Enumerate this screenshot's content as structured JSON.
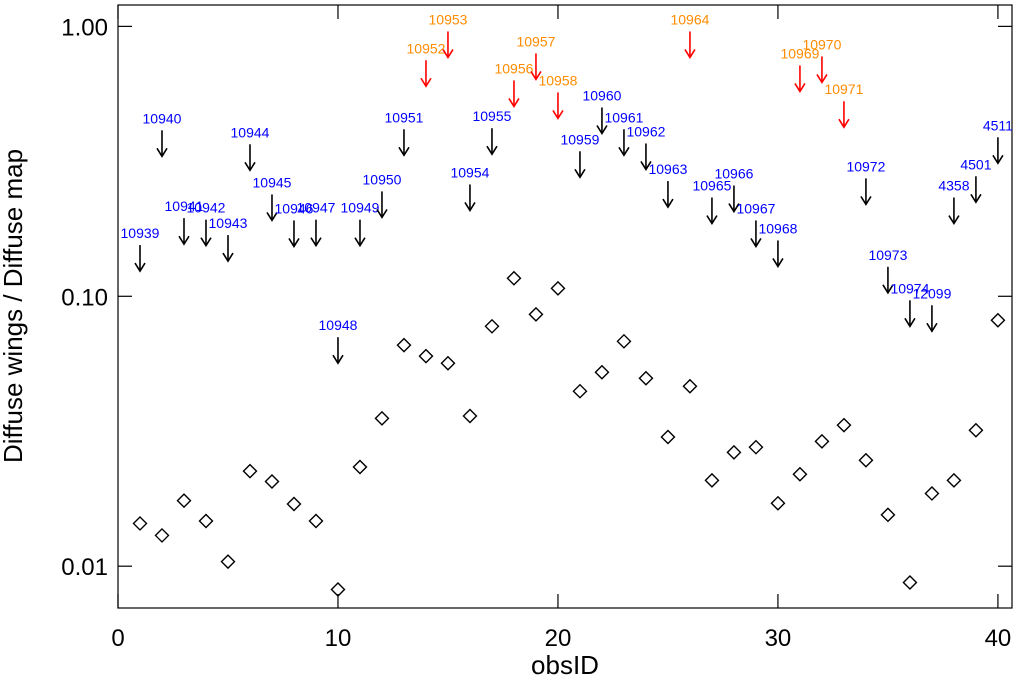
{
  "chart_data": {
    "type": "scatter",
    "xlabel": "obsID",
    "ylabel": "Diffuse wings / Diffuse map",
    "log_y": true,
    "xlim": [
      0,
      40.64
    ],
    "ylim": [
      0.007,
      1.2
    ],
    "xticks": [
      0,
      10,
      20,
      30,
      40
    ],
    "yticks": [
      {
        "value": 0.01,
        "label": "0.01"
      },
      {
        "value": 0.1,
        "label": "0.10"
      },
      {
        "value": 1,
        "label": "1.00"
      }
    ],
    "x": [
      1,
      2,
      3,
      4,
      5,
      6,
      7,
      8,
      9,
      10,
      11,
      12,
      13,
      14,
      15,
      16,
      17,
      18,
      19,
      20,
      21,
      22,
      23,
      24,
      25,
      26,
      27,
      28,
      29,
      30,
      31,
      32,
      33,
      34,
      35,
      36,
      37,
      38,
      39,
      40
    ],
    "series": [
      {
        "marker": "diamond",
        "color": "#000000",
        "values": [
          0.0144,
          0.013,
          0.0175,
          0.0147,
          0.0104,
          0.0225,
          0.0206,
          0.017,
          0.0147,
          0.0082,
          0.0233,
          0.0353,
          0.0659,
          0.06,
          0.0565,
          0.036,
          0.0774,
          0.1166,
          0.0857,
          0.107,
          0.0445,
          0.0523,
          0.0681,
          0.0497,
          0.0301,
          0.0464,
          0.0208,
          0.0264,
          0.0276,
          0.0171,
          0.0219,
          0.029,
          0.0333,
          0.0247,
          0.0155,
          0.0087,
          0.0186,
          0.0208,
          0.0319,
          0.0815
        ]
      },
      {
        "marker": "upper-limit-arrow",
        "values": [
          0.124,
          0.33,
          0.156,
          0.154,
          0.135,
          0.293,
          0.191,
          0.153,
          0.154,
          0.0565,
          0.154,
          0.196,
          0.333,
          0.6,
          0.767,
          0.208,
          0.336,
          0.505,
          0.636,
          0.456,
          0.276,
          0.401,
          0.333,
          0.295,
          0.214,
          0.767,
          0.186,
          0.206,
          0.153,
          0.129,
          0.574,
          0.62,
          0.423,
          0.219,
          0.103,
          0.0774,
          0.0742,
          0.186,
          0.223,
          0.311
        ],
        "labels": [
          "10939",
          "10940",
          "10941",
          "10942",
          "10943",
          "10944",
          "10945",
          "10946",
          "10947",
          "10948",
          "10949",
          "10950",
          "10951",
          "10952",
          "10953",
          "10954",
          "10955",
          "10956",
          "10957",
          "10958",
          "10959",
          "10960",
          "10961",
          "10962",
          "10963",
          "10964",
          "10965",
          "10966",
          "10967",
          "10968",
          "10969",
          "10970",
          "10971",
          "10972",
          "10973",
          "10974",
          "12099",
          "4358",
          "4501",
          "4511"
        ],
        "arrow_colors": [
          "#000000",
          "#000000",
          "#000000",
          "#000000",
          "#000000",
          "#000000",
          "#000000",
          "#000000",
          "#000000",
          "#000000",
          "#000000",
          "#000000",
          "#000000",
          "#ff0000",
          "#ff0000",
          "#000000",
          "#000000",
          "#ff0000",
          "#ff0000",
          "#ff0000",
          "#000000",
          "#000000",
          "#000000",
          "#000000",
          "#000000",
          "#ff0000",
          "#000000",
          "#000000",
          "#000000",
          "#000000",
          "#ff0000",
          "#ff0000",
          "#ff0000",
          "#000000",
          "#000000",
          "#000000",
          "#000000",
          "#000000",
          "#000000",
          "#000000"
        ],
        "label_colors": [
          "#0000ff",
          "#0000ff",
          "#0000ff",
          "#0000ff",
          "#0000ff",
          "#0000ff",
          "#0000ff",
          "#0000ff",
          "#0000ff",
          "#0000ff",
          "#0000ff",
          "#0000ff",
          "#0000ff",
          "#ff8c00",
          "#ff8c00",
          "#0000ff",
          "#0000ff",
          "#ff8c00",
          "#ff8c00",
          "#ff8c00",
          "#0000ff",
          "#0000ff",
          "#0000ff",
          "#0000ff",
          "#0000ff",
          "#ff8c00",
          "#0000ff",
          "#0000ff",
          "#0000ff",
          "#0000ff",
          "#ff8c00",
          "#ff8c00",
          "#ff8c00",
          "#0000ff",
          "#0000ff",
          "#0000ff",
          "#0000ff",
          "#0000ff",
          "#0000ff",
          "#0000ff"
        ]
      }
    ]
  }
}
